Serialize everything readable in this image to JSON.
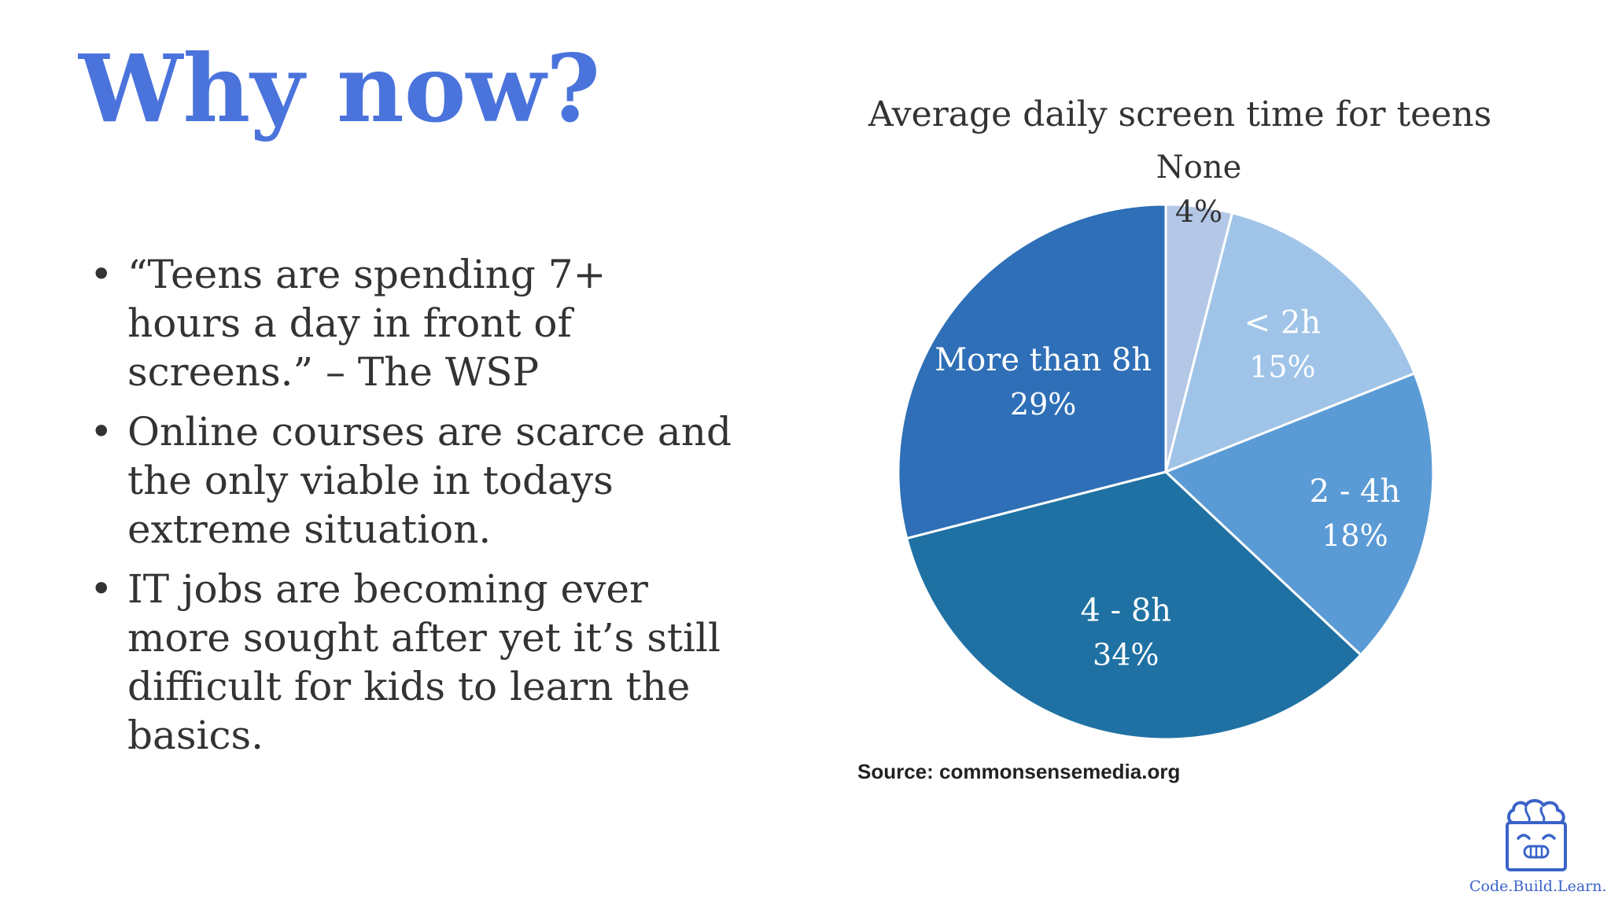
{
  "slide": {
    "title": "Why now?",
    "bullets": [
      "“Teens are spending 7+ hours a day in front of screens.” – The WSP",
      "Online courses are scarce and the only viable in todays extreme situation.",
      "IT jobs are becoming ever more sought after yet it’s still difficult for kids to learn the basics."
    ],
    "bullet_symbol": "•",
    "source": "Source: commonsensemedia.org",
    "logo_text": "Code.Build.Learn.",
    "logo_icon": "brain-box-icon",
    "accent_color": "#4a73dc"
  },
  "chart_data": {
    "type": "pie",
    "title": "Average daily screen time for teens",
    "start": "12 o'clock, clockwise",
    "slices": [
      {
        "label": "None",
        "value": 4,
        "value_label": "4%",
        "color": "#b4c7e7"
      },
      {
        "label": "< 2h",
        "value": 15,
        "value_label": "15%",
        "color": "#9fc4e8"
      },
      {
        "label": "2 - 4h",
        "value": 18,
        "value_label": "18%",
        "color": "#5b9bd5"
      },
      {
        "label": "4 - 8h",
        "value": 34,
        "value_label": "34%",
        "color": "#1f71a3"
      },
      {
        "label": "More than 8h",
        "value": 29,
        "value_label": "29%",
        "color": "#2e6fb7"
      }
    ]
  }
}
